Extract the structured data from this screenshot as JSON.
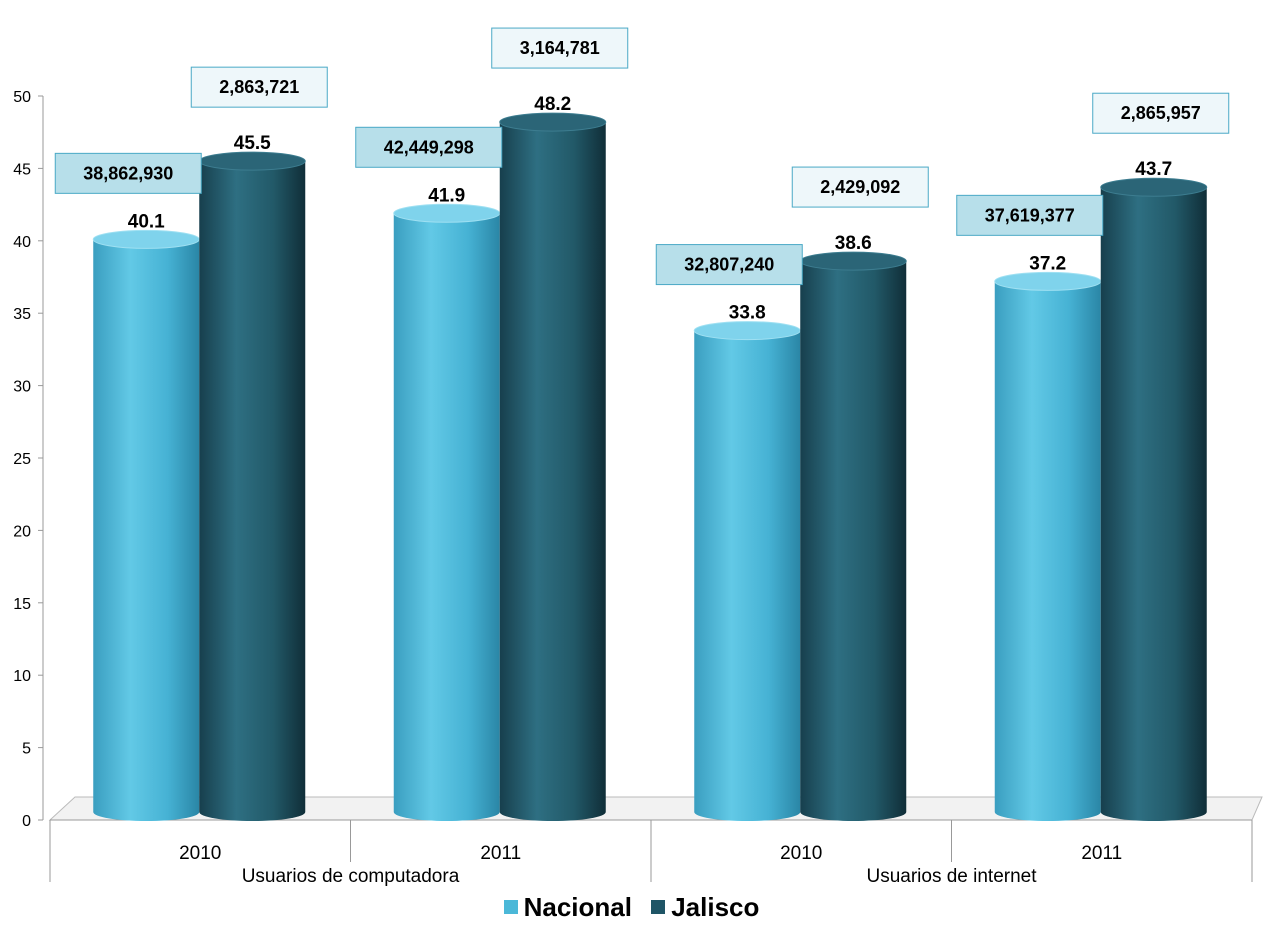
{
  "chart_data": {
    "type": "bar",
    "ylim": [
      0,
      50
    ],
    "yticks": [
      0,
      5,
      10,
      15,
      20,
      25,
      30,
      35,
      40,
      45,
      50
    ],
    "groups": [
      {
        "label": "Usuarios de computadora",
        "categories": [
          "2010",
          "2011"
        ]
      },
      {
        "label": "Usuarios de internet",
        "categories": [
          "2010",
          "2011"
        ]
      }
    ],
    "categories": [
      "2010",
      "2011",
      "2010",
      "2011"
    ],
    "series": [
      {
        "name": "Nacional",
        "values": [
          40.1,
          41.9,
          33.8,
          37.2
        ],
        "value_labels": [
          "40.1",
          "41.9",
          "33.8",
          "37.2"
        ],
        "box_labels": [
          "38,862,930",
          "42,449,298",
          "32,807,240",
          "37,619,377"
        ],
        "color": "#4bb8d8"
      },
      {
        "name": "Jalisco",
        "values": [
          45.5,
          48.2,
          38.6,
          43.7
        ],
        "value_labels": [
          "45.5",
          "48.2",
          "38.6",
          "43.7"
        ],
        "box_labels": [
          "2,863,721",
          "3,164,781",
          "2,429,092",
          "2,865,957"
        ],
        "color": "#1f5566"
      }
    ],
    "grid": false,
    "legend_position": "bottom"
  }
}
